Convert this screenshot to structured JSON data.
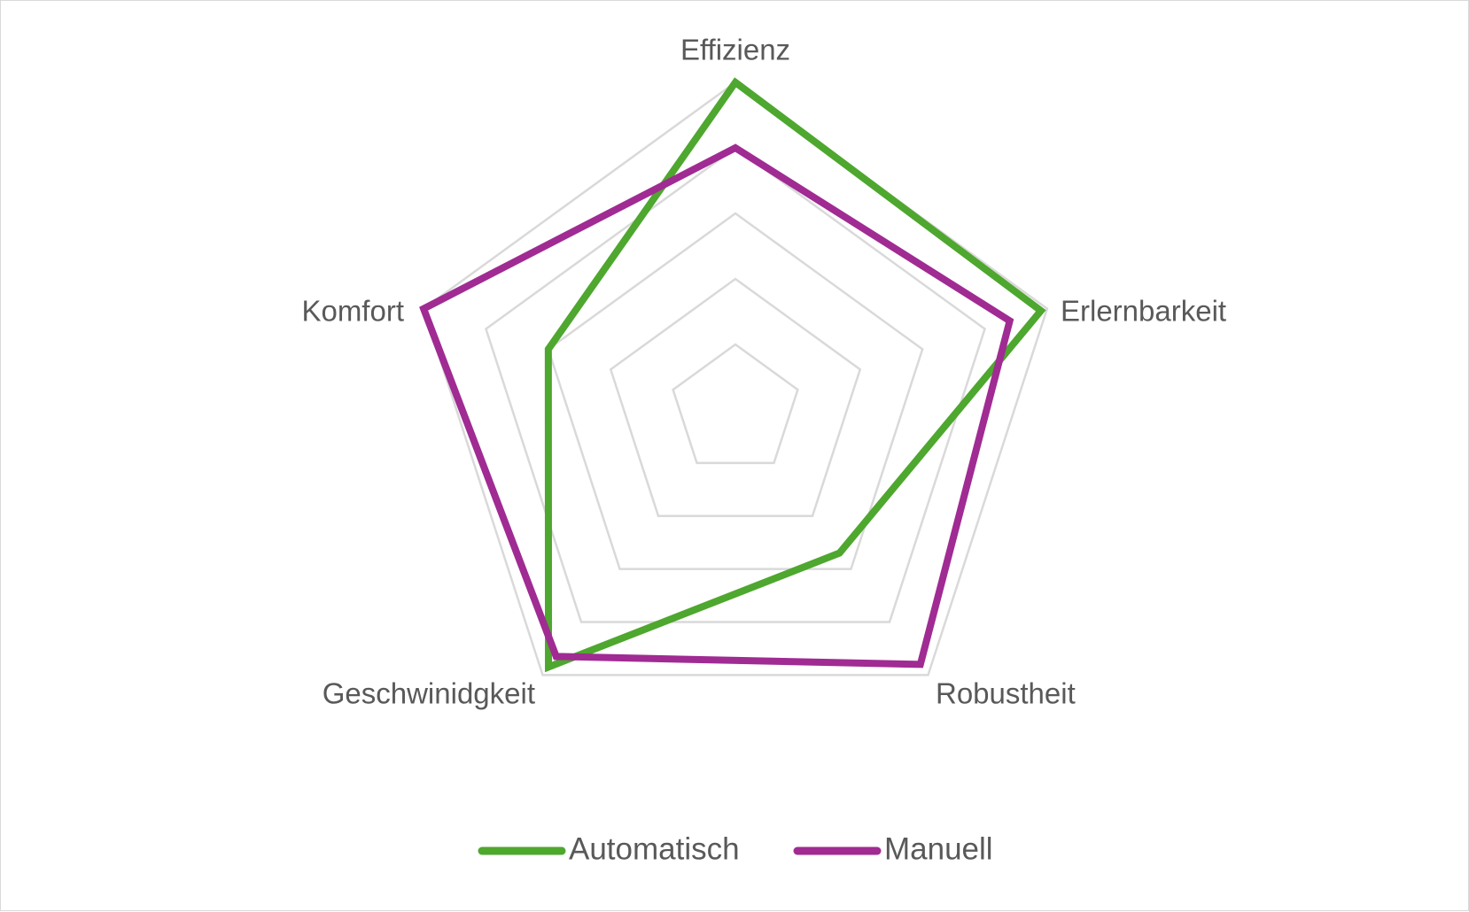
{
  "chart_data": {
    "type": "radar",
    "axes": [
      "Effizienz",
      "Erlernbarkeit",
      "Robustheit",
      "Geschwinidgkeit",
      "Komfort"
    ],
    "r_range": [
      0,
      5
    ],
    "rings": 5,
    "grid": true,
    "legend_position": "bottom",
    "series": [
      {
        "name": "Automatisch",
        "color": "#4ea72e",
        "values": [
          5,
          4.9,
          2.7,
          4.85,
          3.0
        ]
      },
      {
        "name": "Manuell",
        "color": "#a02b93",
        "values": [
          4.0,
          4.4,
          4.8,
          4.65,
          5.0
        ]
      }
    ],
    "grid_color": "#d9d9d9",
    "label_color": "#595959"
  }
}
